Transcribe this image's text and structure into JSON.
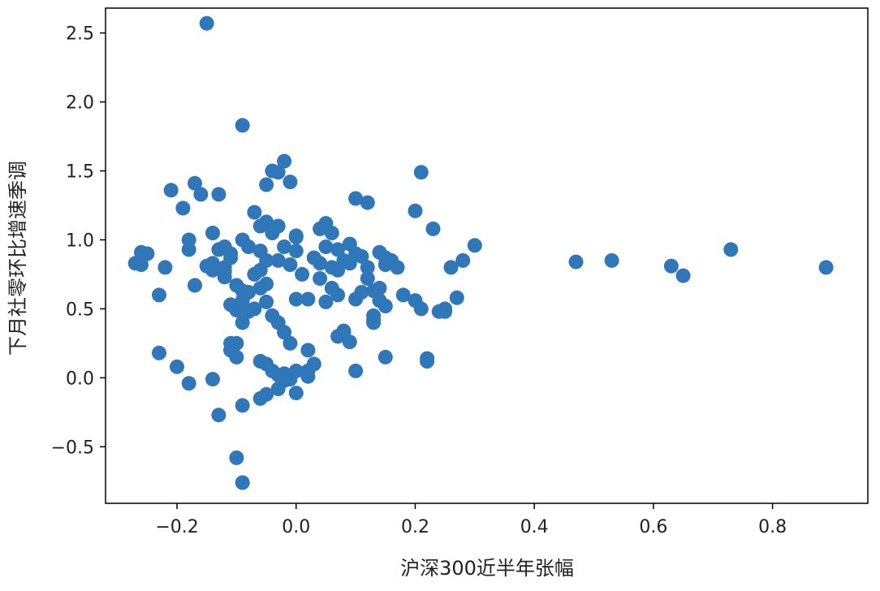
{
  "chart_data": {
    "type": "scatter",
    "title": "",
    "xlabel": "沪深300近半年张幅",
    "ylabel": "下月社零环比增速季调",
    "xlim": [
      -0.32,
      0.96
    ],
    "ylim": [
      -0.91,
      2.68
    ],
    "xticks": [
      {
        "value": -0.2,
        "label": "−0.2"
      },
      {
        "value": 0.0,
        "label": "0.0"
      },
      {
        "value": 0.2,
        "label": "0.2"
      },
      {
        "value": 0.4,
        "label": "0.4"
      },
      {
        "value": 0.6,
        "label": "0.6"
      },
      {
        "value": 0.8,
        "label": "0.8"
      }
    ],
    "yticks": [
      {
        "value": 2.5,
        "label": "2.5"
      },
      {
        "value": 2.0,
        "label": "2.0"
      },
      {
        "value": 1.5,
        "label": "1.5"
      },
      {
        "value": 1.0,
        "label": "1.0"
      },
      {
        "value": 0.5,
        "label": "0.5"
      },
      {
        "value": 0.0,
        "label": "0.0"
      },
      {
        "value": -0.5,
        "label": "−0.5"
      }
    ],
    "grid": false,
    "marker_color": "#2f77b8",
    "x": [
      -0.15,
      -0.09,
      -0.21,
      -0.17,
      -0.19,
      -0.13,
      -0.23,
      -0.25,
      -0.26,
      -0.22,
      -0.18,
      -0.16,
      -0.17,
      -0.14,
      -0.18,
      -0.15,
      -0.12,
      -0.12,
      -0.11,
      -0.13,
      -0.14,
      -0.12,
      -0.09,
      -0.08,
      -0.07,
      -0.09,
      -0.11,
      -0.1,
      -0.09,
      -0.06,
      -0.05,
      -0.06,
      -0.04,
      -0.07,
      -0.05,
      -0.03,
      -0.03,
      -0.04,
      -0.02,
      -0.05,
      -0.06,
      -0.02,
      -0.03,
      -0.01,
      0.0,
      0.0,
      0.01,
      0.0,
      -0.01,
      0.02,
      0.03,
      0.04,
      0.05,
      0.06,
      0.05,
      0.04,
      0.06,
      0.07,
      0.07,
      0.08,
      0.09,
      0.1,
      0.09,
      0.11,
      0.12,
      0.1,
      0.12,
      0.13,
      0.14,
      0.15,
      0.16,
      0.17,
      0.14,
      0.15,
      0.13,
      -0.09,
      -0.1,
      -0.11,
      -0.12,
      -0.14,
      -0.11,
      -0.1,
      -0.09,
      -0.08,
      -0.07,
      -0.08,
      -0.05,
      -0.06,
      -0.04,
      -0.05,
      -0.03,
      -0.02,
      -0.01,
      -0.02,
      -0.03,
      0.0,
      0.02,
      0.03,
      0.05,
      0.04,
      0.06,
      0.07,
      0.08,
      0.09,
      0.11,
      0.1,
      0.12,
      0.13,
      0.15,
      0.14,
      0.18,
      0.2,
      0.21,
      0.22,
      0.24,
      0.25,
      0.27,
      0.28,
      0.26,
      0.3,
      -0.23,
      -0.2,
      -0.18,
      -0.14,
      -0.11,
      -0.11,
      -0.1,
      -0.09,
      -0.06,
      -0.05,
      -0.04,
      -0.06,
      -0.05,
      -0.03,
      -0.02,
      -0.01,
      0.0,
      0.02,
      0.02,
      0.07,
      0.08,
      0.1,
      0.13,
      0.15,
      0.22,
      0.25,
      -0.13,
      -0.1,
      -0.09,
      0.0,
      0.47,
      0.53,
      0.63,
      0.65,
      0.73,
      0.89,
      0.21,
      0.23,
      0.2,
      -0.27,
      -0.26
    ],
    "y": [
      2.57,
      1.83,
      1.36,
      1.41,
      1.23,
      1.33,
      0.6,
      0.9,
      0.82,
      0.8,
      0.93,
      1.33,
      0.67,
      1.05,
      1.0,
      0.81,
      0.77,
      0.8,
      0.87,
      0.93,
      0.83,
      0.73,
      1.0,
      0.95,
      1.2,
      0.63,
      0.53,
      0.49,
      0.4,
      1.1,
      1.13,
      0.92,
      1.05,
      0.75,
      0.85,
      1.1,
      1.49,
      1.5,
      1.57,
      1.4,
      0.65,
      0.95,
      0.85,
      0.82,
      1.02,
      1.03,
      0.75,
      0.92,
      1.42,
      0.57,
      0.87,
      0.83,
      0.95,
      0.8,
      1.12,
      1.08,
      1.05,
      0.93,
      0.78,
      0.85,
      0.97,
      0.9,
      0.83,
      0.88,
      0.8,
      1.3,
      1.27,
      0.63,
      0.56,
      0.87,
      0.85,
      0.8,
      0.91,
      0.82,
      0.42,
      0.52,
      0.25,
      0.2,
      0.95,
      0.78,
      0.9,
      0.67,
      0.56,
      0.48,
      0.5,
      0.62,
      0.55,
      0.78,
      0.45,
      0.68,
      0.4,
      0.33,
      0.25,
      -0.02,
      0.02,
      0.05,
      0.2,
      0.1,
      0.55,
      0.72,
      0.65,
      0.3,
      0.34,
      0.26,
      0.62,
      0.57,
      0.72,
      0.45,
      0.52,
      0.65,
      0.6,
      0.56,
      0.5,
      0.12,
      0.48,
      0.5,
      0.58,
      0.85,
      0.8,
      0.96,
      0.18,
      0.08,
      -0.04,
      -0.01,
      0.25,
      0.2,
      0.15,
      -0.2,
      0.12,
      0.1,
      0.05,
      -0.15,
      -0.12,
      -0.08,
      0.03,
      -0.01,
      -0.11,
      0.05,
      0.01,
      0.6,
      0.33,
      0.05,
      0.4,
      0.15,
      0.14,
      0.48,
      -0.27,
      -0.58,
      -0.76,
      0.57,
      0.84,
      0.85,
      0.81,
      0.74,
      0.93,
      0.8,
      1.49,
      1.08,
      1.21,
      0.83,
      0.91
    ]
  }
}
